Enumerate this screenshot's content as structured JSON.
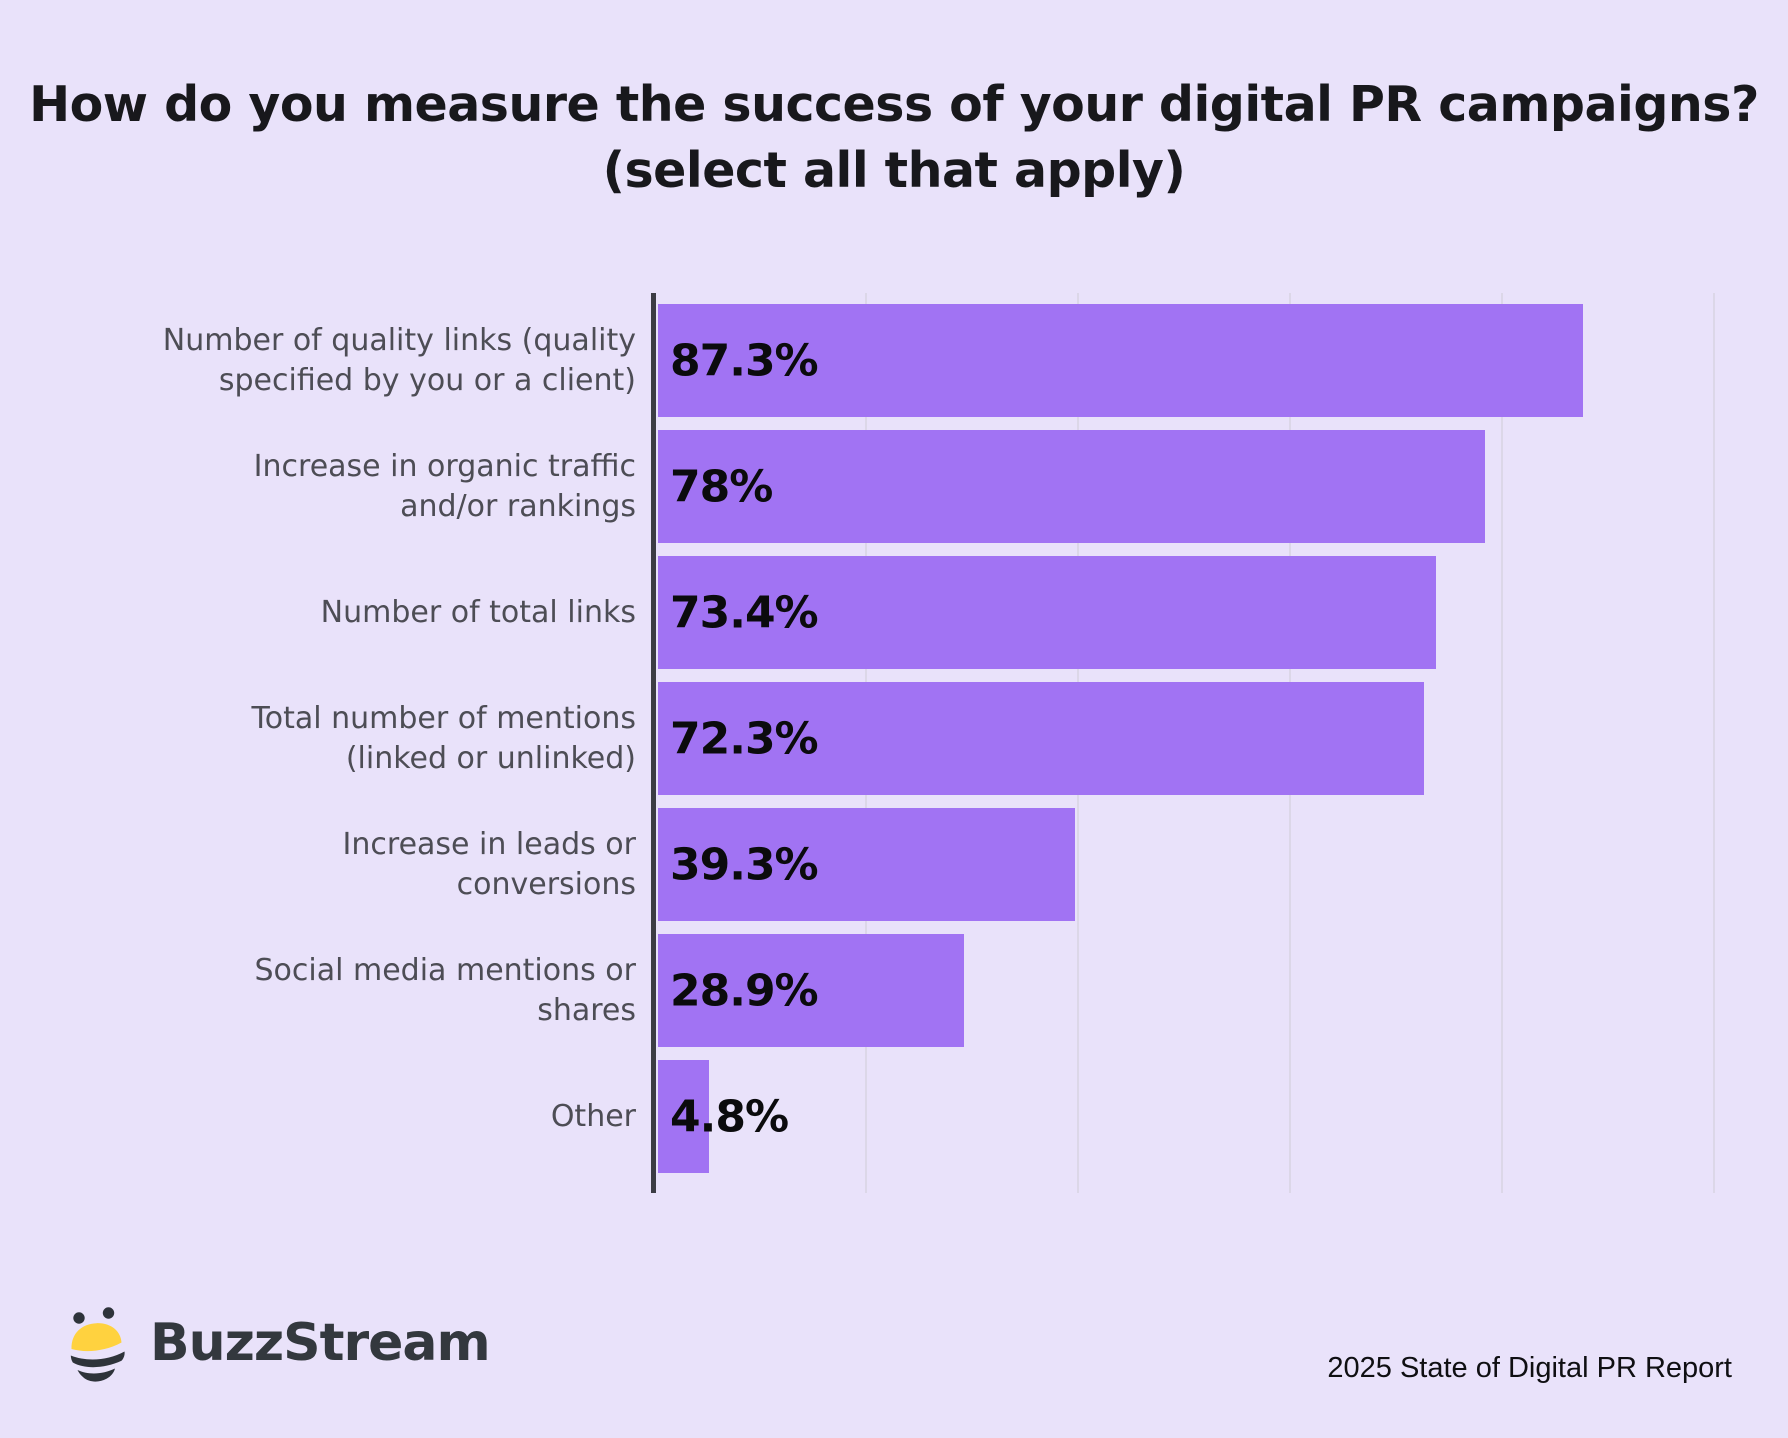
{
  "title": {
    "line1": "How do you measure the success of your digital PR campaigns?",
    "line2": "(select all that apply)"
  },
  "chart_data": {
    "type": "bar",
    "orientation": "horizontal",
    "title": "How do you measure the success of your digital PR campaigns? (select all that apply)",
    "categories": [
      "Number of quality links (quality specified by you or a client)",
      "Increase in organic traffic and/or rankings",
      "Number of total links",
      "Total number of mentions (linked or unlinked)",
      "Increase in leads or conversions",
      "Social media mentions or shares",
      "Other"
    ],
    "category_lines": [
      [
        "Number of quality links (quality",
        "specified by you or a client)"
      ],
      [
        "Increase in organic traffic",
        "and/or rankings"
      ],
      [
        "Number of total links"
      ],
      [
        "Total number of mentions",
        "(linked or unlinked)"
      ],
      [
        "Increase in leads or",
        "conversions"
      ],
      [
        "Social media mentions or",
        "shares"
      ],
      [
        "Other"
      ]
    ],
    "values": [
      87.3,
      78,
      73.4,
      72.3,
      39.3,
      28.9,
      4.8
    ],
    "value_labels": [
      "87.3%",
      "78%",
      "73.4%",
      "72.3%",
      "39.3%",
      "28.9%",
      "4.8%"
    ],
    "xlabel": "",
    "ylabel": "",
    "xlim": [
      0,
      102
    ],
    "gridline_percents": [
      20,
      40,
      60,
      80,
      100
    ],
    "grid": "vertical-only, no tick labels shown",
    "legend": "none",
    "bar_color": "#A173F3"
  },
  "footer": {
    "brand": "BuzzStream",
    "report": "2025 State of Digital PR Report"
  },
  "colors": {
    "background": "#E9E2FA",
    "bar": "#A173F3",
    "axis_line": "#3C3C44",
    "gridline": "#DCD7E8",
    "title_text": "#18181C",
    "category_label": "#4D4D55",
    "value_label": "#0B0B0D",
    "brand_text": "#33383E",
    "bee_yellow": "#FFD23F",
    "bee_dark": "#2E333A",
    "footer_text": "#0F0F12"
  }
}
